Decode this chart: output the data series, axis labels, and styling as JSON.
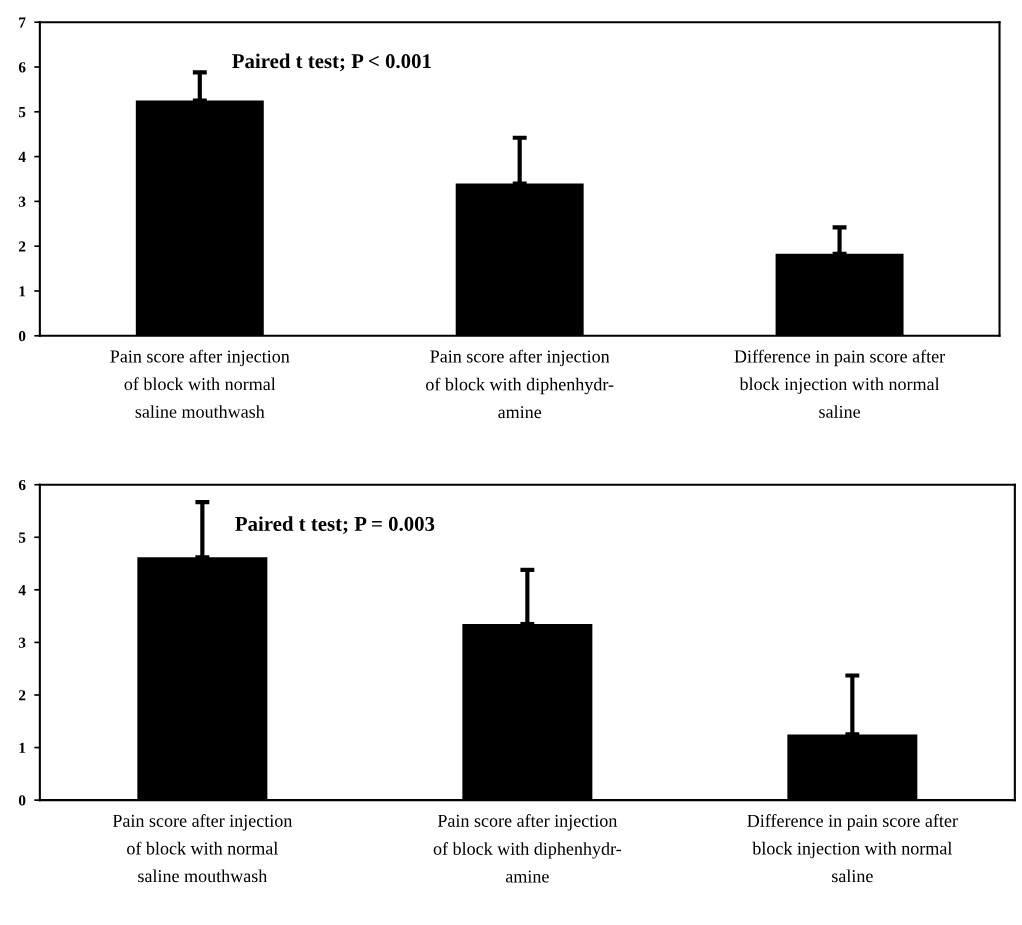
{
  "chart_data": [
    {
      "type": "bar",
      "categories": [
        "Pain score after injection\nof block with normal\nsaline mouthwash",
        "Pain score after injection\nof block with diphenhydr-\namine",
        "Difference in pain score after\nblock injection with normal\nsaline"
      ],
      "values": [
        5.25,
        3.4,
        1.83
      ],
      "color": "#000000",
      "errors": [
        [
          5.25,
          5.88
        ],
        [
          3.4,
          4.42
        ],
        [
          1.83,
          2.42
        ]
      ],
      "ylim": [
        0,
        7
      ],
      "yticks": [
        0,
        1,
        2,
        3,
        4,
        5,
        6,
        7
      ],
      "grid": false,
      "annotations": [
        "Paired t test; P < 0.001"
      ]
    },
    {
      "type": "bar",
      "categories": [
        "Pain score after injection\nof block with normal\nsaline mouthwash",
        "Pain score after injection\nof block with diphenhydr-\namine",
        "Difference in pain score after\nblock injection with normal\nsaline"
      ],
      "values": [
        4.62,
        3.35,
        1.25
      ],
      "color": "#000000",
      "errors": [
        [
          4.62,
          5.67
        ],
        [
          3.35,
          4.38
        ],
        [
          1.25,
          2.37
        ]
      ],
      "ylim": [
        0,
        6
      ],
      "yticks": [
        0,
        1,
        2,
        3,
        4,
        5,
        6
      ],
      "grid": false,
      "annotations": [
        "Paired t test; P = 0.003"
      ]
    }
  ]
}
